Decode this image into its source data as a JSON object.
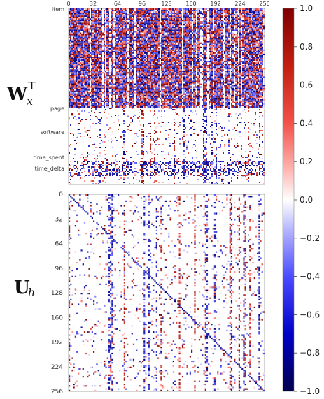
{
  "chart_data": [
    {
      "type": "heatmap",
      "title": "",
      "row_label": "W_x^⊤",
      "x_ticks": [
        "0",
        "32",
        "64",
        "96",
        "128",
        "160",
        "192",
        "224",
        "256"
      ],
      "xlim": [
        0,
        256
      ],
      "row_groups": [
        "item",
        "page",
        "software",
        "time_spent",
        "time_delta"
      ],
      "cmap": "seismic",
      "vmin": -1.0,
      "vmax": 1.0,
      "pattern": "dense random weights in item block; sparse in page/software/time blocks with banding near time_delta"
    },
    {
      "type": "heatmap",
      "title": "",
      "row_label": "U_h",
      "y_ticks": [
        "0",
        "32",
        "64",
        "96",
        "128",
        "160",
        "192",
        "224",
        "256"
      ],
      "xlim": [
        0,
        256
      ],
      "ylim": [
        0,
        256
      ],
      "cmap": "seismic",
      "vmin": -1.0,
      "vmax": 1.0,
      "pattern": "sparse random weights with strong diagonal and vertical stripes"
    }
  ],
  "labels": {
    "wx_main": "W",
    "wx_sub": "x",
    "wx_sup": "⊤",
    "uh_main": "U",
    "uh_sub": "h"
  },
  "colorbar": {
    "ticks": [
      "1.0",
      "0.8",
      "0.6",
      "0.4",
      "0.2",
      "0.0",
      "−0.2",
      "−0.4",
      "−0.6",
      "−0.8",
      "−1.0"
    ],
    "colors": {
      "neg": "#00004c",
      "mid": "#ffffff",
      "pos": "#7f0000"
    }
  }
}
